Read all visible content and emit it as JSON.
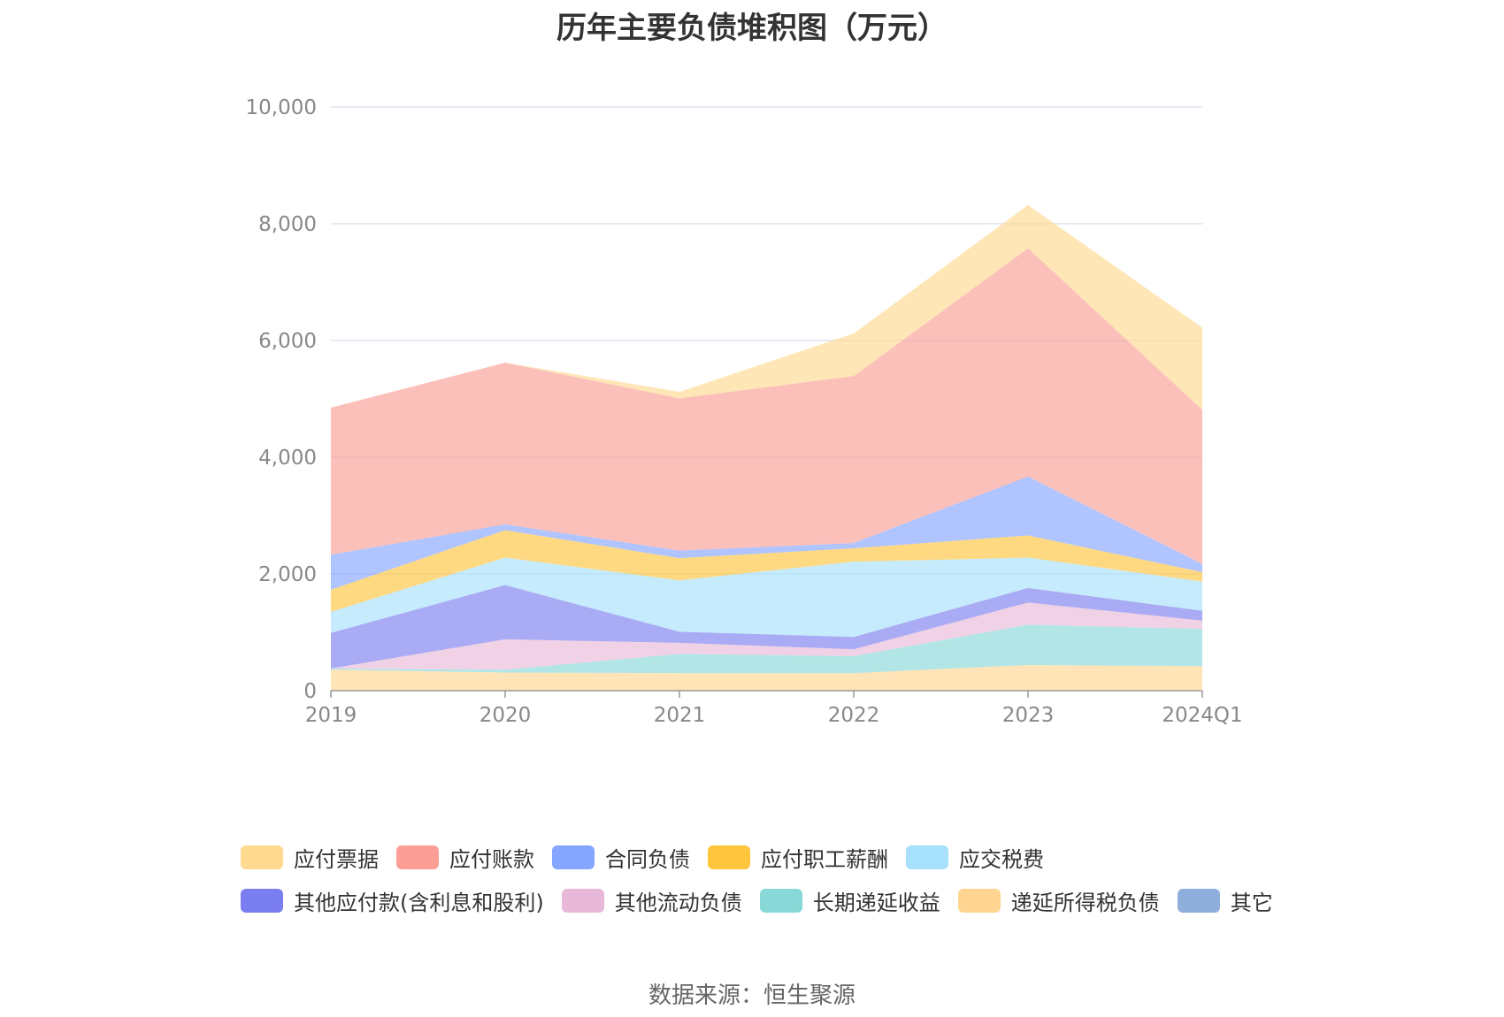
{
  "chart_data": {
    "type": "area",
    "stacked": true,
    "title": "历年主要负债堆积图（万元）",
    "xlabel": "",
    "ylabel": "",
    "categories": [
      "2019",
      "2020",
      "2021",
      "2022",
      "2023",
      "2024Q1"
    ],
    "y_ticks": [
      "0",
      "2,000",
      "4,000",
      "6,000",
      "8,000",
      "10,000"
    ],
    "ylim": [
      0,
      10000
    ],
    "grid": true,
    "legend_position": "bottom",
    "series": [
      {
        "name": "递延所得税负债",
        "color": "#ffd591",
        "values": [
          360,
          310,
          300,
          300,
          440,
          420
        ]
      },
      {
        "name": "长期递延收益",
        "color": "#88d8d8",
        "values": [
          20,
          50,
          330,
          290,
          690,
          640
        ]
      },
      {
        "name": "其他流动负债",
        "color": "#e8b8d8",
        "values": [
          0,
          520,
          190,
          120,
          380,
          140
        ]
      },
      {
        "name": "其他应付款(含利息和股利)",
        "color": "#7b7ef0",
        "values": [
          610,
          930,
          190,
          210,
          250,
          170
        ]
      },
      {
        "name": "应交税费",
        "color": "#a6e0fa",
        "values": [
          360,
          470,
          880,
          1290,
          520,
          500
        ]
      },
      {
        "name": "应付职工薪酬",
        "color": "#ffc53d",
        "values": [
          380,
          470,
          380,
          230,
          380,
          160
        ]
      },
      {
        "name": "合同负债",
        "color": "#85a5ff",
        "values": [
          600,
          100,
          130,
          90,
          1010,
          140
        ]
      },
      {
        "name": "应付账款",
        "color": "#fb9e95",
        "values": [
          2520,
          2770,
          2610,
          2860,
          3910,
          2640
        ]
      },
      {
        "name": "应付票据",
        "color": "#ffd98f",
        "values": [
          0,
          0,
          110,
          730,
          740,
          1410
        ]
      },
      {
        "name": "其它",
        "color": "#8eaedb",
        "values": [
          0,
          0,
          0,
          0,
          0,
          0
        ]
      }
    ],
    "legend_order": [
      "应付票据",
      "应付账款",
      "合同负债",
      "应付职工薪酬",
      "应交税费",
      "其他应付款(含利息和股利)",
      "其他流动负债",
      "长期递延收益",
      "递延所得税负债",
      "其它"
    ]
  },
  "source_text": "数据来源：恒生聚源"
}
